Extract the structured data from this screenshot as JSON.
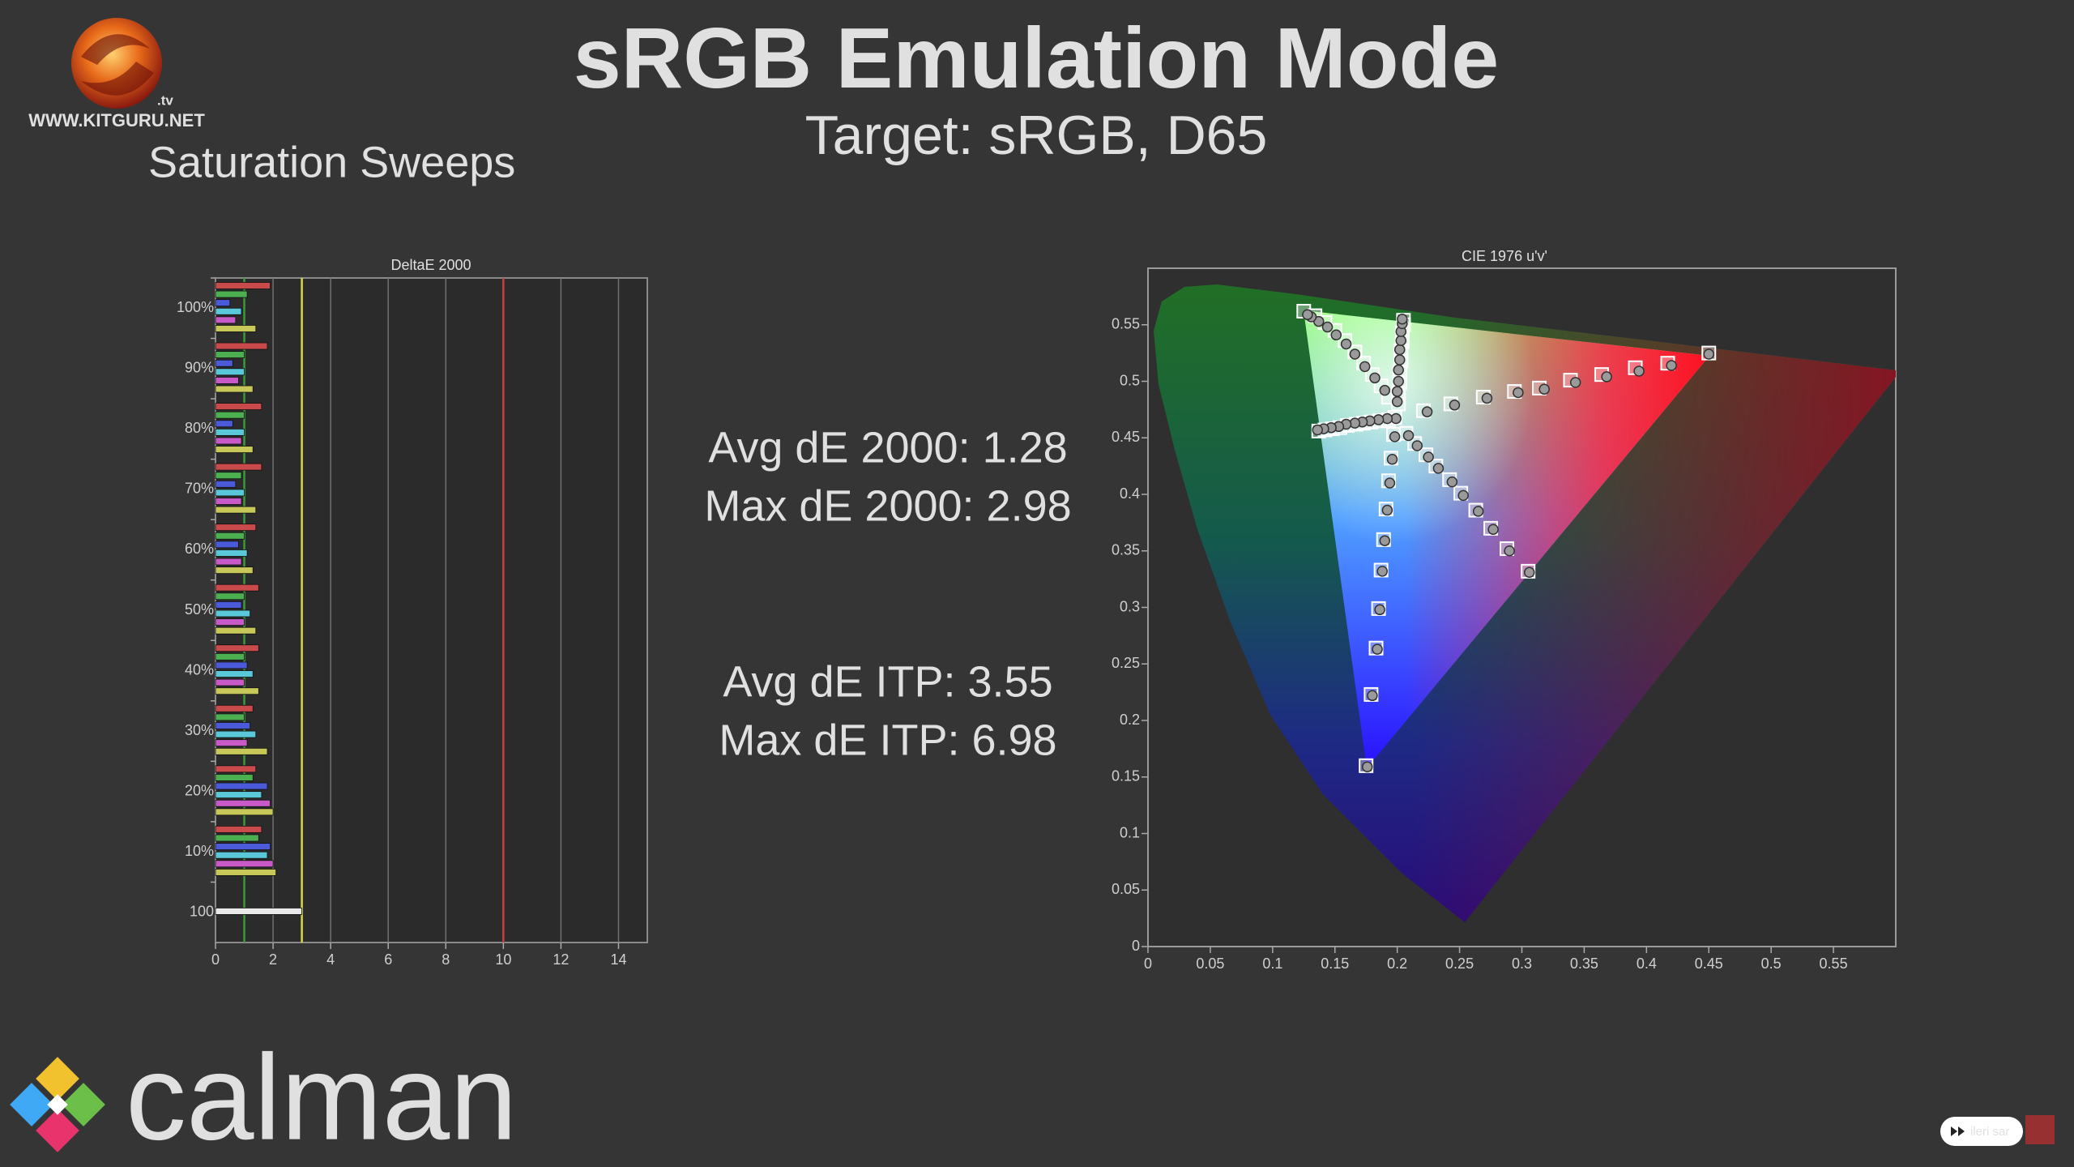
{
  "header": {
    "title": "sRGB Emulation Mode",
    "subtitle": "Target: sRGB, D65",
    "section": "Saturation Sweeps"
  },
  "logo": {
    "site": "WWW.KITGURU.NET",
    "suffix": ".tv",
    "brand": "calman"
  },
  "stats": [
    "Avg dE 2000: 1.28",
    "Max dE 2000: 2.98",
    "Avg dE ITP: 3.55",
    "Max dE ITP: 6.98"
  ],
  "button": "ileri sar",
  "chart_data": [
    {
      "type": "bar",
      "orientation": "horizontal",
      "title": "DeltaE 2000",
      "categories": [
        "100%",
        "90%",
        "80%",
        "70%",
        "60%",
        "50%",
        "40%",
        "30%",
        "20%",
        "10%",
        "100"
      ],
      "series": [
        {
          "color": "#c84a4a",
          "values": [
            1.9,
            1.8,
            1.6,
            1.6,
            1.4,
            1.5,
            1.5,
            1.3,
            1.4,
            1.6,
            null
          ]
        },
        {
          "color": "#4caf50",
          "values": [
            1.1,
            1.0,
            1.0,
            0.9,
            1.0,
            1.0,
            1.0,
            1.0,
            1.3,
            1.5,
            null
          ]
        },
        {
          "color": "#4a5ad8",
          "values": [
            0.5,
            0.6,
            0.6,
            0.7,
            0.8,
            0.9,
            1.1,
            1.2,
            1.8,
            1.9,
            null
          ]
        },
        {
          "color": "#5ac8d8",
          "values": [
            0.9,
            1.0,
            1.0,
            1.0,
            1.1,
            1.2,
            1.3,
            1.4,
            1.6,
            1.8,
            null
          ]
        },
        {
          "color": "#c85ac8",
          "values": [
            0.7,
            0.8,
            0.9,
            0.9,
            0.9,
            1.0,
            1.0,
            1.1,
            1.9,
            2.0,
            null
          ]
        },
        {
          "color": "#c8c85a",
          "values": [
            1.4,
            1.3,
            1.3,
            1.4,
            1.3,
            1.4,
            1.5,
            1.8,
            2.0,
            2.1,
            null
          ]
        },
        {
          "color": "#e8e8e8",
          "values": [
            null,
            null,
            null,
            null,
            null,
            null,
            null,
            null,
            null,
            null,
            3.0
          ]
        }
      ],
      "xlim": [
        0,
        15
      ],
      "xticks": [
        0,
        2,
        4,
        6,
        8,
        10,
        12,
        14
      ],
      "grid": true,
      "reference_lines": [
        {
          "value": 1,
          "color": "#3a9a3a"
        },
        {
          "value": 3,
          "color": "#d8d84a"
        },
        {
          "value": 10,
          "color": "#c84040"
        }
      ]
    },
    {
      "type": "scatter",
      "title": "CIE 1976 u'v'",
      "xlim": [
        0,
        0.6
      ],
      "ylim": [
        0,
        0.6
      ],
      "xticks": [
        0,
        0.05,
        0.1,
        0.15,
        0.2,
        0.25,
        0.3,
        0.35,
        0.4,
        0.45,
        0.5,
        0.55
      ],
      "yticks": [
        0,
        0.05,
        0.1,
        0.15,
        0.2,
        0.25,
        0.3,
        0.35,
        0.4,
        0.45,
        0.5,
        0.55
      ],
      "grid": false,
      "series": [
        {
          "marker": "square",
          "color": "#ffffff",
          "x": [
            0.198,
            0.221,
            0.243,
            0.269,
            0.294,
            0.314,
            0.339,
            0.364,
            0.391,
            0.417,
            0.45,
            0.193,
            0.187,
            0.18,
            0.173,
            0.166,
            0.158,
            0.15,
            0.142,
            0.134,
            0.125,
            0.197,
            0.195,
            0.193,
            0.191,
            0.189,
            0.187,
            0.185,
            0.183,
            0.179,
            0.175,
            0.193,
            0.186,
            0.179,
            0.173,
            0.167,
            0.16,
            0.154,
            0.148,
            0.142,
            0.137,
            0.207,
            0.214,
            0.223,
            0.231,
            0.242,
            0.251,
            0.263,
            0.275,
            0.288,
            0.305,
            0.201,
            0.201,
            0.202,
            0.202,
            0.203,
            0.203,
            0.204,
            0.204,
            0.205,
            0.205
          ],
          "values": [
            0.468,
            0.474,
            0.48,
            0.486,
            0.491,
            0.494,
            0.501,
            0.506,
            0.512,
            0.516,
            0.525,
            0.486,
            0.496,
            0.506,
            0.516,
            0.526,
            0.536,
            0.545,
            0.552,
            0.558,
            0.562,
            0.453,
            0.432,
            0.412,
            0.387,
            0.36,
            0.333,
            0.299,
            0.264,
            0.223,
            0.16,
            0.466,
            0.465,
            0.464,
            0.463,
            0.462,
            0.461,
            0.459,
            0.458,
            0.457,
            0.456,
            0.454,
            0.445,
            0.435,
            0.425,
            0.413,
            0.401,
            0.386,
            0.37,
            0.352,
            0.332,
            0.48,
            0.489,
            0.499,
            0.508,
            0.518,
            0.527,
            0.535,
            0.543,
            0.55,
            0.554
          ]
        },
        {
          "marker": "circle",
          "color": "#9a9a9a",
          "x": [
            0.199,
            0.224,
            0.246,
            0.272,
            0.297,
            0.318,
            0.343,
            0.368,
            0.394,
            0.42,
            0.45,
            0.19,
            0.182,
            0.174,
            0.166,
            0.159,
            0.151,
            0.144,
            0.137,
            0.131,
            0.128,
            0.198,
            0.196,
            0.194,
            0.192,
            0.19,
            0.188,
            0.186,
            0.184,
            0.18,
            0.176,
            0.192,
            0.185,
            0.178,
            0.172,
            0.166,
            0.159,
            0.153,
            0.147,
            0.141,
            0.136,
            0.209,
            0.216,
            0.225,
            0.233,
            0.244,
            0.253,
            0.265,
            0.277,
            0.29,
            0.306,
            0.2,
            0.2,
            0.201,
            0.201,
            0.202,
            0.202,
            0.203,
            0.203,
            0.204,
            0.204
          ],
          "values": [
            0.467,
            0.473,
            0.479,
            0.485,
            0.49,
            0.493,
            0.499,
            0.504,
            0.509,
            0.514,
            0.524,
            0.492,
            0.503,
            0.513,
            0.524,
            0.533,
            0.541,
            0.548,
            0.553,
            0.557,
            0.559,
            0.451,
            0.431,
            0.41,
            0.386,
            0.359,
            0.332,
            0.298,
            0.263,
            0.222,
            0.159,
            0.467,
            0.466,
            0.465,
            0.464,
            0.463,
            0.462,
            0.46,
            0.459,
            0.458,
            0.457,
            0.452,
            0.443,
            0.433,
            0.423,
            0.411,
            0.399,
            0.385,
            0.369,
            0.35,
            0.331,
            0.482,
            0.491,
            0.5,
            0.51,
            0.519,
            0.528,
            0.536,
            0.544,
            0.551,
            0.555
          ]
        }
      ]
    }
  ]
}
